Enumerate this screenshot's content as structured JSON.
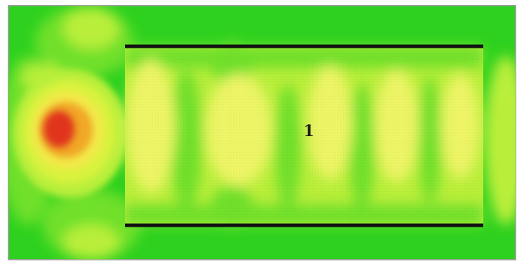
{
  "figure": {
    "marker_label": "1",
    "colors": {
      "background_green": "#2ed11f",
      "mid_green": "#6fe02a",
      "light_green": "#b9ef3a",
      "yellow_green": "#d9f23c",
      "pale_yellow": "#eef566",
      "yellow": "#f2e94a",
      "orange": "#f0a726",
      "red": "#e0361c",
      "electrode_black": "#111111",
      "frame": "#9aa09a"
    }
  }
}
